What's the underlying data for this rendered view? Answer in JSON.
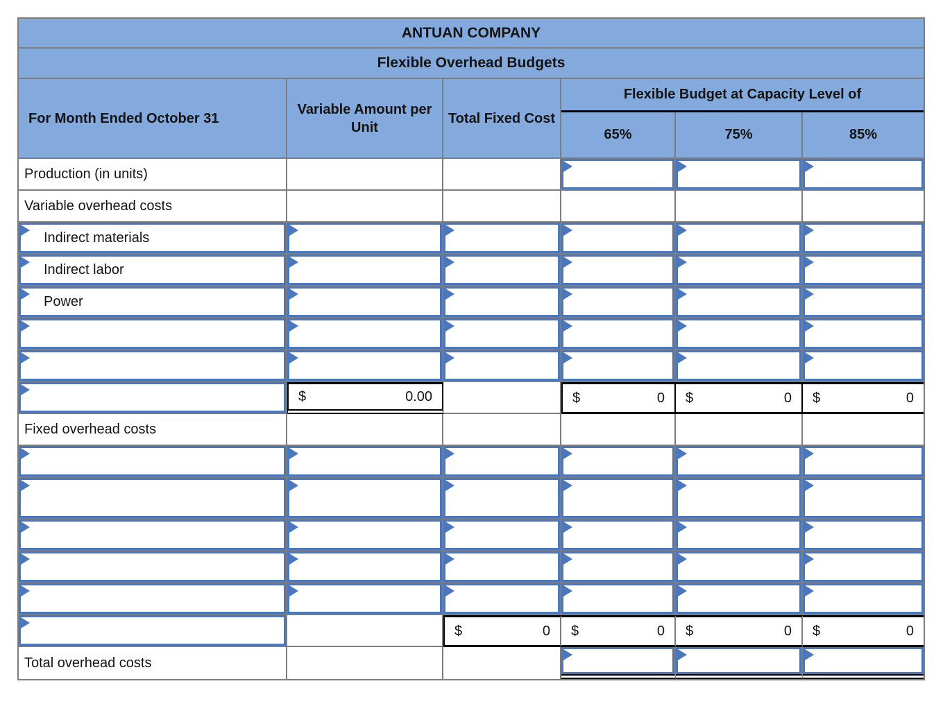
{
  "title": "ANTUAN COMPANY",
  "subtitle": "Flexible Overhead Budgets",
  "columns": {
    "period": "For Month Ended October 31",
    "variable_amount": "Variable Amount per Unit",
    "total_fixed": "Total Fixed Cost",
    "capacity_group": "Flexible Budget at Capacity Level of",
    "level_65": "65%",
    "level_75": "75%",
    "level_85": "85%"
  },
  "rows": {
    "production_label": "Production (in units)",
    "variable_section_label": "Variable overhead costs",
    "indirect_materials": "Indirect materials",
    "indirect_labor": "Indirect labor",
    "power": "Power",
    "fixed_section_label": "Fixed overhead costs",
    "grand_total_label": "Total overhead costs"
  },
  "values": {
    "dollar": "$",
    "variable_rate_total": "0.00",
    "variable_total_65": "0",
    "variable_total_75": "0",
    "variable_total_85": "0",
    "fixed_cost_total": "0",
    "fixed_total_65": "0",
    "fixed_total_75": "0",
    "fixed_total_85": "0"
  },
  "colors": {
    "header_blue": "#84A9DD",
    "input_border_blue": "#4A77BD",
    "gridline_gray": "#7D7D7D",
    "total_border_black": "#000000"
  }
}
